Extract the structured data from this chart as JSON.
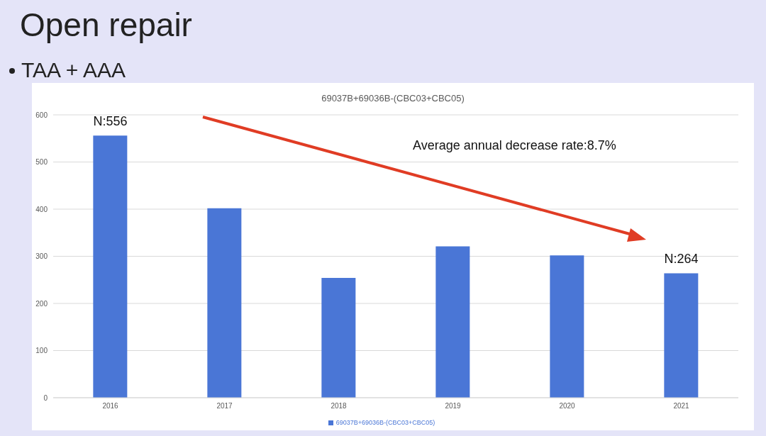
{
  "chart_data": {
    "type": "bar",
    "title": "Open repair",
    "subtitle": "TAA + AAA",
    "categories": [
      "2016",
      "2017",
      "2018",
      "2019",
      "2020",
      "2021"
    ],
    "series": [
      {
        "name": "69037B+69036B-(CBC03+CBC05)",
        "color": "#4a76d6",
        "values": [
          556,
          402,
          254,
          321,
          302,
          264
        ]
      }
    ],
    "ylim": [
      0,
      600
    ],
    "yticks": [
      0,
      100,
      200,
      300,
      400,
      500,
      600
    ],
    "grid": "y",
    "legend": "bottom",
    "annotations": [
      "69037B+69036B-(CBC03+CBC05)",
      "Average annual decrease rate:8.7%",
      {
        "text": "N:556",
        "x": "2016",
        "y": 556
      },
      {
        "text": "N:264",
        "x": "2021",
        "y": 264
      }
    ]
  }
}
